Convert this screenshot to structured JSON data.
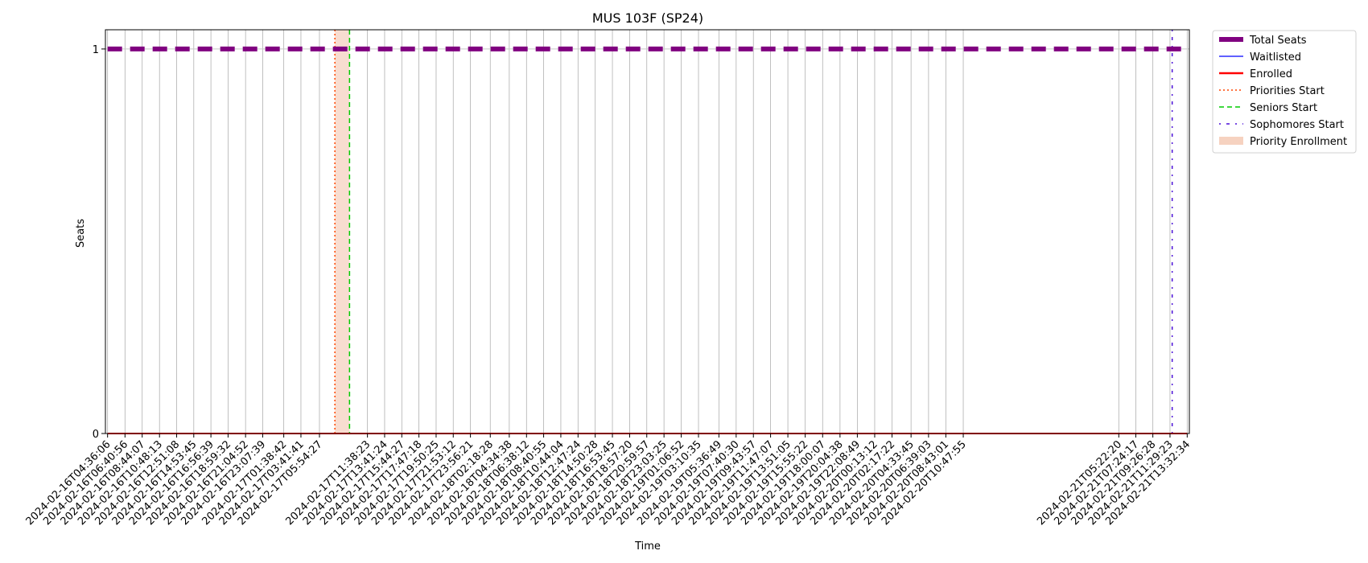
{
  "chart_data": {
    "type": "line",
    "title": "MUS 103F (SP24)",
    "xlabel": "Time",
    "ylabel": "Seats",
    "ylim": [
      0,
      1.05
    ],
    "y_ticks": [
      0,
      1
    ],
    "grid": "x",
    "legend_placement": "outside-top-right",
    "x": [
      "2024-02-16T04:36:06",
      "2024-02-16T06:40:56",
      "2024-02-16T08:44:07",
      "2024-02-16T10:48:13",
      "2024-02-16T12:51:08",
      "2024-02-16T14:53:45",
      "2024-02-16T16:56:39",
      "2024-02-16T18:59:32",
      "2024-02-16T21:04:52",
      "2024-02-16T23:07:39",
      "2024-02-17T01:38:42",
      "2024-02-17T03:41:41",
      "2024-02-17T05:54:27",
      "2024-02-17T11:38:23",
      "2024-02-17T13:41:24",
      "2024-02-17T15:44:27",
      "2024-02-17T17:47:18",
      "2024-02-17T19:50:25",
      "2024-02-17T21:53:12",
      "2024-02-17T23:56:21",
      "2024-02-18T02:18:28",
      "2024-02-18T04:34:38",
      "2024-02-18T06:38:12",
      "2024-02-18T08:40:55",
      "2024-02-18T10:44:04",
      "2024-02-18T12:47:24",
      "2024-02-18T14:50:28",
      "2024-02-18T16:53:45",
      "2024-02-18T18:57:20",
      "2024-02-18T20:59:57",
      "2024-02-18T23:03:25",
      "2024-02-19T01:06:52",
      "2024-02-19T03:10:35",
      "2024-02-19T05:36:49",
      "2024-02-19T07:40:30",
      "2024-02-19T09:43:57",
      "2024-02-19T11:47:07",
      "2024-02-19T13:51:05",
      "2024-02-19T15:55:22",
      "2024-02-19T18:00:07",
      "2024-02-19T20:04:38",
      "2024-02-19T22:08:49",
      "2024-02-20T00:13:12",
      "2024-02-20T02:17:22",
      "2024-02-20T04:33:45",
      "2024-02-20T06:39:03",
      "2024-02-20T08:43:01",
      "2024-02-20T10:47:55",
      "2024-02-21T05:22:20",
      "2024-02-21T07:24:17",
      "2024-02-21T09:26:28",
      "2024-02-21T11:29:23",
      "2024-02-21T13:32:34"
    ],
    "series": [
      {
        "name": "Total Seats",
        "color": "#800080",
        "style": "dashed-thick",
        "values": [
          1,
          1,
          1,
          1,
          1,
          1,
          1,
          1,
          1,
          1,
          1,
          1,
          1,
          1,
          1,
          1,
          1,
          1,
          1,
          1,
          1,
          1,
          1,
          1,
          1,
          1,
          1,
          1,
          1,
          1,
          1,
          1,
          1,
          1,
          1,
          1,
          1,
          1,
          1,
          1,
          1,
          1,
          1,
          1,
          1,
          1,
          1,
          1,
          1,
          1,
          1,
          1,
          1
        ]
      },
      {
        "name": "Waitlisted",
        "color": "#0000ff",
        "style": "solid-thin",
        "values": [
          0,
          0,
          0,
          0,
          0,
          0,
          0,
          0,
          0,
          0,
          0,
          0,
          0,
          0,
          0,
          0,
          0,
          0,
          0,
          0,
          0,
          0,
          0,
          0,
          0,
          0,
          0,
          0,
          0,
          0,
          0,
          0,
          0,
          0,
          0,
          0,
          0,
          0,
          0,
          0,
          0,
          0,
          0,
          0,
          0,
          0,
          0,
          0,
          0,
          0,
          0,
          0,
          0
        ]
      },
      {
        "name": "Enrolled",
        "color": "#ff0000",
        "style": "solid",
        "values": [
          0,
          0,
          0,
          0,
          0,
          0,
          0,
          0,
          0,
          0,
          0,
          0,
          0,
          0,
          0,
          0,
          0,
          0,
          0,
          0,
          0,
          0,
          0,
          0,
          0,
          0,
          0,
          0,
          0,
          0,
          0,
          0,
          0,
          0,
          0,
          0,
          0,
          0,
          0,
          0,
          0,
          0,
          0,
          0,
          0,
          0,
          0,
          0,
          0,
          0,
          0,
          0,
          0
        ]
      }
    ],
    "markers": [
      {
        "name": "Priorities Start",
        "color": "#ff4500",
        "style": "dotted",
        "at": "2024-02-17T07:45:00"
      },
      {
        "name": "Seniors Start",
        "color": "#00cc00",
        "style": "dashed",
        "at": "2024-02-17T09:30:00"
      },
      {
        "name": "Sophomores Start",
        "color": "#4b0fd8",
        "style": "dashdot-sparse",
        "at": "2024-02-21T11:45:00"
      }
    ],
    "spans": [
      {
        "name": "Priority Enrollment",
        "color": "#f4c7b0",
        "start": "2024-02-17T07:45:00",
        "end": "2024-02-17T09:30:00"
      }
    ],
    "legend": [
      {
        "label": "Total Seats",
        "kind": "total"
      },
      {
        "label": "Waitlisted",
        "kind": "wait"
      },
      {
        "label": "Enrolled",
        "kind": "enr"
      },
      {
        "label": "Priorities Start",
        "kind": "prio"
      },
      {
        "label": "Seniors Start",
        "kind": "sen"
      },
      {
        "label": "Sophomores Start",
        "kind": "soph"
      },
      {
        "label": "Priority Enrollment",
        "kind": "span"
      }
    ]
  }
}
